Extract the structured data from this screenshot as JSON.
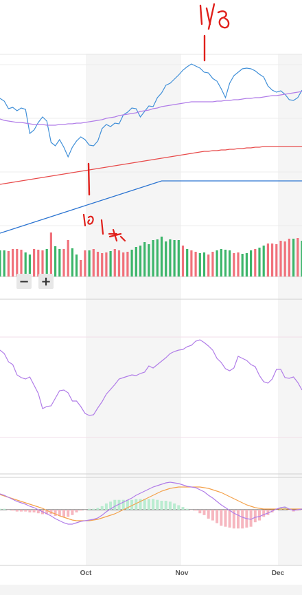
{
  "chart_data": {
    "type": "line",
    "x_axis": {
      "ticks": [
        "Oct",
        "Nov",
        "Dec"
      ]
    },
    "price_panel": {
      "series": [
        {
          "color": "#3f8fd8",
          "values": [
            143,
            147,
            158,
            156,
            161,
            157,
            159,
            194,
            189,
            178,
            170,
            176,
            207,
            212,
            203,
            214,
            228,
            214,
            205,
            199,
            203,
            211,
            212,
            205,
            187,
            181,
            184,
            179,
            180,
            167,
            163,
            157,
            158,
            170,
            162,
            154,
            155,
            142,
            135,
            124,
            121,
            115,
            109,
            102,
            97,
            93,
            96,
            99,
            105,
            106,
            114,
            118,
            129,
            142,
            121,
            110,
            105,
            100,
            99,
            100,
            103,
            108,
            112,
            125,
            131,
            134,
            132,
            137,
            145,
            146,
            142,
            131
          ]
        },
        {
          "color": "#b07ce8",
          "values": [
            173,
            175,
            176,
            177,
            178,
            178,
            179,
            180,
            181,
            181,
            181,
            182,
            182,
            182,
            181,
            181,
            180,
            180,
            179,
            179,
            178,
            177,
            176,
            175,
            174,
            172,
            171,
            170,
            168,
            167,
            166,
            165,
            164,
            162,
            161,
            160,
            158,
            157,
            155,
            154,
            153,
            152,
            151,
            150,
            149,
            148,
            148,
            148,
            148,
            148,
            148,
            147,
            147,
            146,
            146,
            145,
            145,
            144,
            143,
            143,
            142,
            142,
            141,
            140,
            139,
            139,
            138,
            137,
            136,
            135,
            134,
            133
          ]
        },
        {
          "color": "#e84a4a",
          "values": [
            268,
            267,
            266,
            265,
            264,
            263,
            262,
            261,
            260,
            259,
            258,
            257,
            256,
            255,
            254,
            253,
            252,
            251,
            250,
            249,
            248,
            247,
            246,
            245,
            244,
            243,
            242,
            241,
            240,
            239,
            238,
            237,
            236,
            235,
            234,
            233,
            232,
            231,
            230,
            229,
            228,
            227,
            226,
            225,
            224,
            223,
            222,
            221,
            220,
            220,
            219,
            219,
            218,
            218,
            217,
            217,
            216,
            216,
            215,
            215,
            214,
            214,
            213,
            213,
            213,
            213,
            213,
            213,
            213,
            213,
            213,
            213
          ]
        },
        {
          "color": "#2b74d1",
          "values": [
            339,
            337,
            335,
            333,
            331,
            329,
            327,
            325,
            323,
            321,
            319,
            317,
            315,
            313,
            311,
            309,
            307,
            305,
            303,
            301,
            299,
            297,
            295,
            293,
            291,
            289,
            287,
            285,
            283,
            281,
            279,
            277,
            275,
            273,
            271,
            269,
            267,
            265,
            263,
            263,
            263,
            263,
            263,
            263,
            263,
            263,
            263,
            263,
            263,
            263,
            263,
            263,
            263,
            263,
            263,
            263,
            263,
            263,
            263,
            263,
            263,
            263,
            263,
            263,
            263,
            263,
            263,
            263,
            263,
            263,
            263,
            263
          ]
        }
      ]
    },
    "volume_panel": {
      "values": [
        38,
        38,
        37,
        40,
        40,
        39,
        35,
        32,
        40,
        39,
        38,
        40,
        64,
        44,
        40,
        40,
        53,
        41,
        32,
        24,
        38,
        38,
        40,
        36,
        34,
        35,
        37,
        40,
        38,
        35,
        36,
        39,
        43,
        45,
        50,
        47,
        53,
        54,
        58,
        51,
        54,
        53,
        53,
        45,
        40,
        38,
        36,
        34,
        35,
        32,
        36,
        38,
        40,
        39,
        38,
        34,
        35,
        33,
        34,
        38,
        40,
        42,
        45,
        48,
        48,
        47,
        52,
        51,
        55,
        55,
        56,
        52
      ],
      "colors": [
        "g",
        "g",
        "r",
        "r",
        "r",
        "r",
        "g",
        "g",
        "r",
        "r",
        "r",
        "g",
        "r",
        "g",
        "g",
        "r",
        "r",
        "g",
        "g",
        "r",
        "r",
        "g",
        "r",
        "r",
        "r",
        "r",
        "g",
        "r",
        "r",
        "r",
        "r",
        "g",
        "g",
        "g",
        "g",
        "g",
        "g",
        "g",
        "g",
        "g",
        "g",
        "g",
        "g",
        "r",
        "g",
        "r",
        "r",
        "g",
        "g",
        "r",
        "r",
        "g",
        "g",
        "g",
        "g",
        "r",
        "r",
        "g",
        "g",
        "g",
        "r",
        "g",
        "g",
        "r",
        "r",
        "r",
        "r",
        "r",
        "r",
        "g",
        "r",
        "g"
      ]
    },
    "rsi_panel": {
      "color": "#b07ce8",
      "values": [
        509,
        514,
        526,
        530,
        545,
        549,
        551,
        548,
        560,
        572,
        594,
        591,
        590,
        579,
        568,
        567,
        571,
        583,
        583,
        591,
        601,
        604,
        603,
        593,
        584,
        573,
        566,
        559,
        551,
        549,
        547,
        545,
        546,
        543,
        541,
        532,
        535,
        530,
        525,
        520,
        514,
        511,
        509,
        508,
        504,
        502,
        496,
        494,
        498,
        503,
        509,
        521,
        527,
        536,
        539,
        535,
        518,
        521,
        524,
        530,
        533,
        546,
        555,
        557,
        551,
        537,
        537,
        549,
        550,
        548,
        556,
        567
      ]
    },
    "macd_panel": {
      "line1": {
        "color": "#b07ce8",
        "values": [
          718,
          720,
          723,
          726,
          729,
          731,
          733,
          736,
          738,
          741,
          744,
          747,
          750,
          754,
          757,
          760,
          762,
          762,
          760,
          758,
          757,
          756,
          755,
          753,
          749,
          744,
          740,
          736,
          733,
          730,
          727,
          724,
          720,
          717,
          714,
          711,
          708,
          706,
          704,
          702,
          701,
          702,
          703,
          705,
          707,
          708,
          709,
          712,
          715,
          720,
          724,
          729,
          734,
          738,
          742,
          746,
          749,
          752,
          754,
          755,
          752,
          751,
          748,
          746,
          743,
          740,
          738,
          737,
          740,
          742,
          741,
          740
        ]
      },
      "line2": {
        "color": "#f4a14a",
        "values": [
          719,
          721,
          723,
          725,
          727,
          729,
          731,
          733,
          735,
          737,
          739,
          742,
          745,
          747,
          750,
          752,
          754,
          756,
          757,
          757,
          757,
          757,
          756,
          755,
          753,
          751,
          749,
          747,
          744,
          741,
          738,
          735,
          732,
          729,
          726,
          723,
          720,
          717,
          714,
          712,
          710,
          709,
          708,
          708,
          708,
          708,
          708,
          708,
          709,
          710,
          712,
          714,
          716,
          719,
          722,
          725,
          728,
          731,
          734,
          736,
          738,
          739,
          740,
          740,
          740,
          740,
          740,
          740,
          740,
          740,
          740,
          740
        ]
      },
      "histogram_colors": [
        "pink",
        "mint"
      ]
    }
  }
}
